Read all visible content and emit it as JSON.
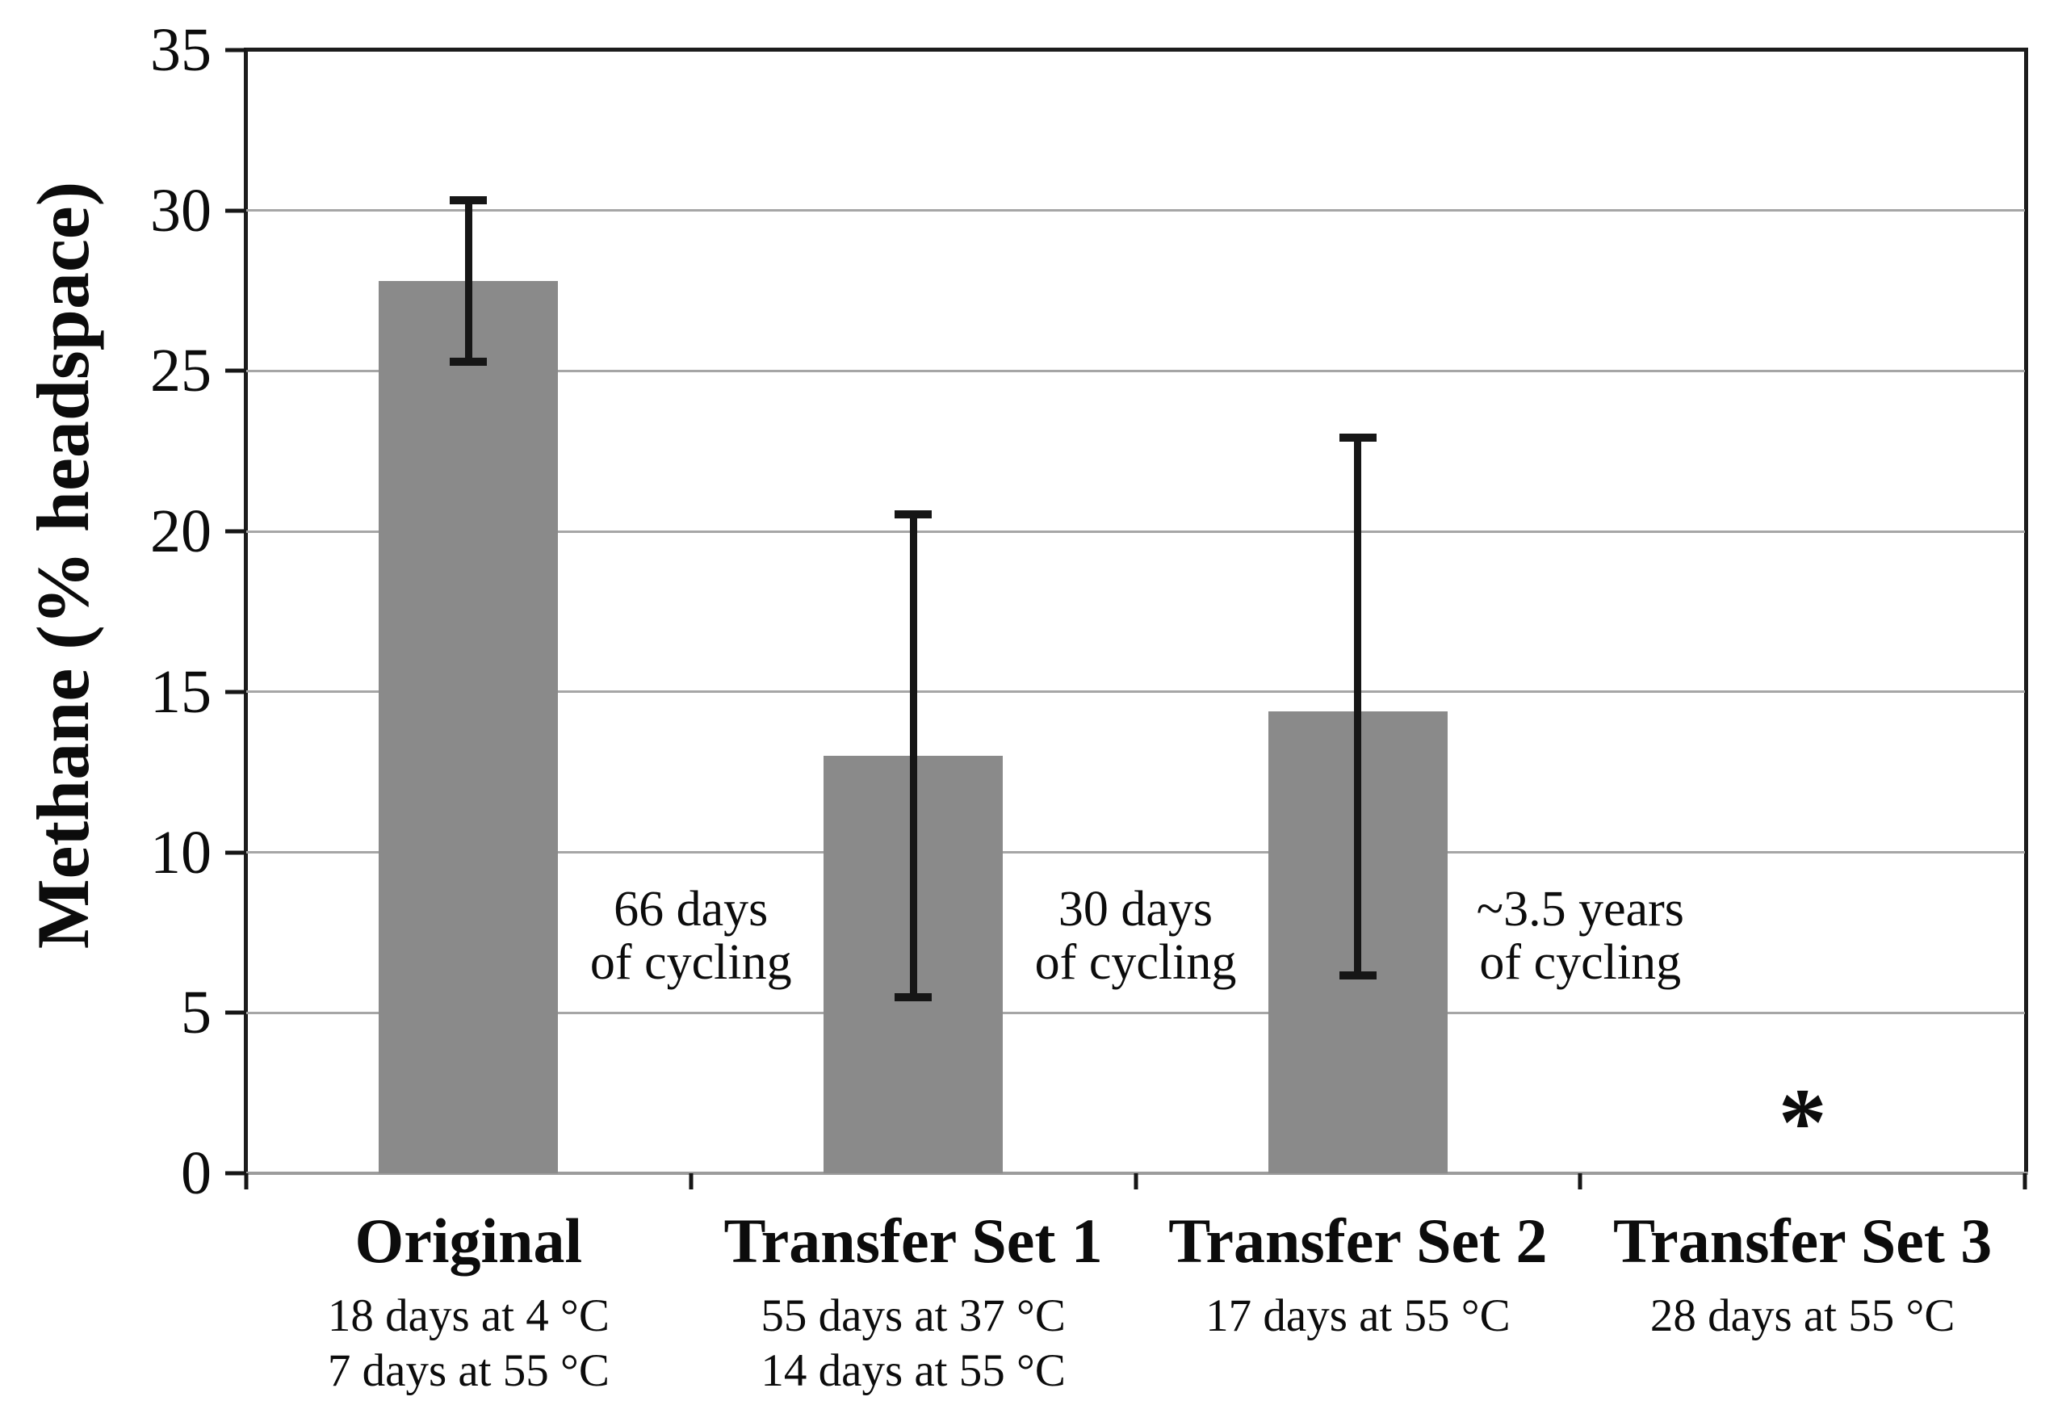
{
  "figure": {
    "background": "#ffffff"
  },
  "chart_data": {
    "type": "bar",
    "title": "",
    "xlabel": "",
    "ylabel": "Methane (% headspace)",
    "ylim": [
      0,
      35
    ],
    "yticks": [
      0,
      5,
      10,
      15,
      20,
      25,
      30,
      35
    ],
    "grid": "horizontal",
    "legend": "none",
    "bar_color": "#8a8a8a",
    "axis_color": "#1c1c1c",
    "gridline_color": "#a6a6a6",
    "error_bar_color": "#161616",
    "categories": [
      {
        "label": "Original",
        "sublabels": [
          "18 days at 4 °C",
          "7 days at 55 °C"
        ],
        "value": 27.8,
        "error_low": 25.2,
        "error_high": 30.4,
        "marker": null
      },
      {
        "label": "Transfer Set 1",
        "sublabels": [
          "55 days at 37 °C",
          "14 days at 55 °C"
        ],
        "value": 13.0,
        "error_low": 5.4,
        "error_high": 20.6,
        "marker": null
      },
      {
        "label": "Transfer Set 2",
        "sublabels": [
          "17 days at 55 °C"
        ],
        "value": 14.4,
        "error_low": 6.1,
        "error_high": 23.0,
        "marker": null
      },
      {
        "label": "Transfer Set 3",
        "sublabels": [
          "28 days at 55 °C"
        ],
        "value": null,
        "error_low": null,
        "error_high": null,
        "marker": "*",
        "marker_y_value": 2.2
      }
    ],
    "annotations": [
      {
        "lines": [
          "66 days",
          "of cycling"
        ],
        "between_categories": [
          0,
          1
        ],
        "y_value": 7.4
      },
      {
        "lines": [
          "30 days",
          "of cycling"
        ],
        "between_categories": [
          1,
          2
        ],
        "y_value": 7.4
      },
      {
        "lines": [
          "~3.5 years",
          "of cycling"
        ],
        "between_categories": [
          2,
          3
        ],
        "y_value": 7.4
      }
    ]
  }
}
